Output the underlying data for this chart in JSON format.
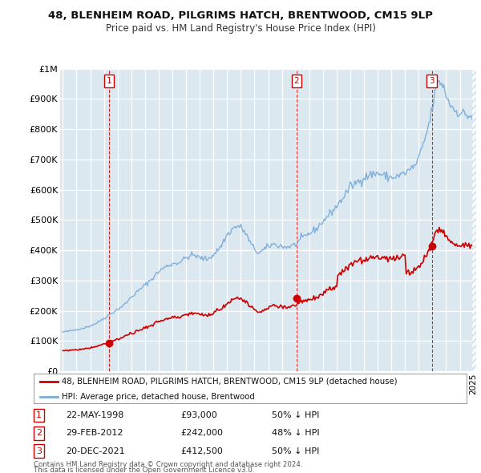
{
  "title": "48, BLENHEIM ROAD, PILGRIMS HATCH, BRENTWOOD, CM15 9LP",
  "subtitle": "Price paid vs. HM Land Registry's House Price Index (HPI)",
  "sale_labels": [
    "1",
    "2",
    "3"
  ],
  "sale_pct": [
    "50% ↓ HPI",
    "48% ↓ HPI",
    "50% ↓ HPI"
  ],
  "sale_date_labels": [
    "22-MAY-1998",
    "29-FEB-2012",
    "20-DEC-2021"
  ],
  "sale_price_labels": [
    "£93,000",
    "£242,000",
    "£412,500"
  ],
  "sale_prices": [
    93000,
    242000,
    412500
  ],
  "sale_year_floats": [
    1998.37,
    2012.08,
    2021.96
  ],
  "legend_house": "48, BLENHEIM ROAD, PILGRIMS HATCH, BRENTWOOD, CM15 9LP (detached house)",
  "legend_hpi": "HPI: Average price, detached house, Brentwood",
  "footnote1": "Contains HM Land Registry data © Crown copyright and database right 2024.",
  "footnote2": "This data is licensed under the Open Government Licence v3.0.",
  "house_color": "#cc0000",
  "hpi_color": "#7aadda",
  "vline_color": "#cc0000",
  "grid_color": "#c8d8e8",
  "bg_color": "#dce8f0",
  "plot_bg_color": "#dce8f0",
  "white": "#ffffff",
  "ylim": [
    0,
    1000000
  ],
  "yticks": [
    0,
    100000,
    200000,
    300000,
    400000,
    500000,
    600000,
    700000,
    800000,
    900000
  ],
  "ytick_labels": [
    "£0",
    "£100K",
    "£200K",
    "£300K",
    "£400K",
    "£500K",
    "£600K",
    "£700K",
    "£800K",
    "£900K"
  ],
  "extra_ytick": 1000000,
  "extra_ytick_label": "£1M",
  "xlim_left": 1994.8,
  "xlim_right": 2025.2
}
